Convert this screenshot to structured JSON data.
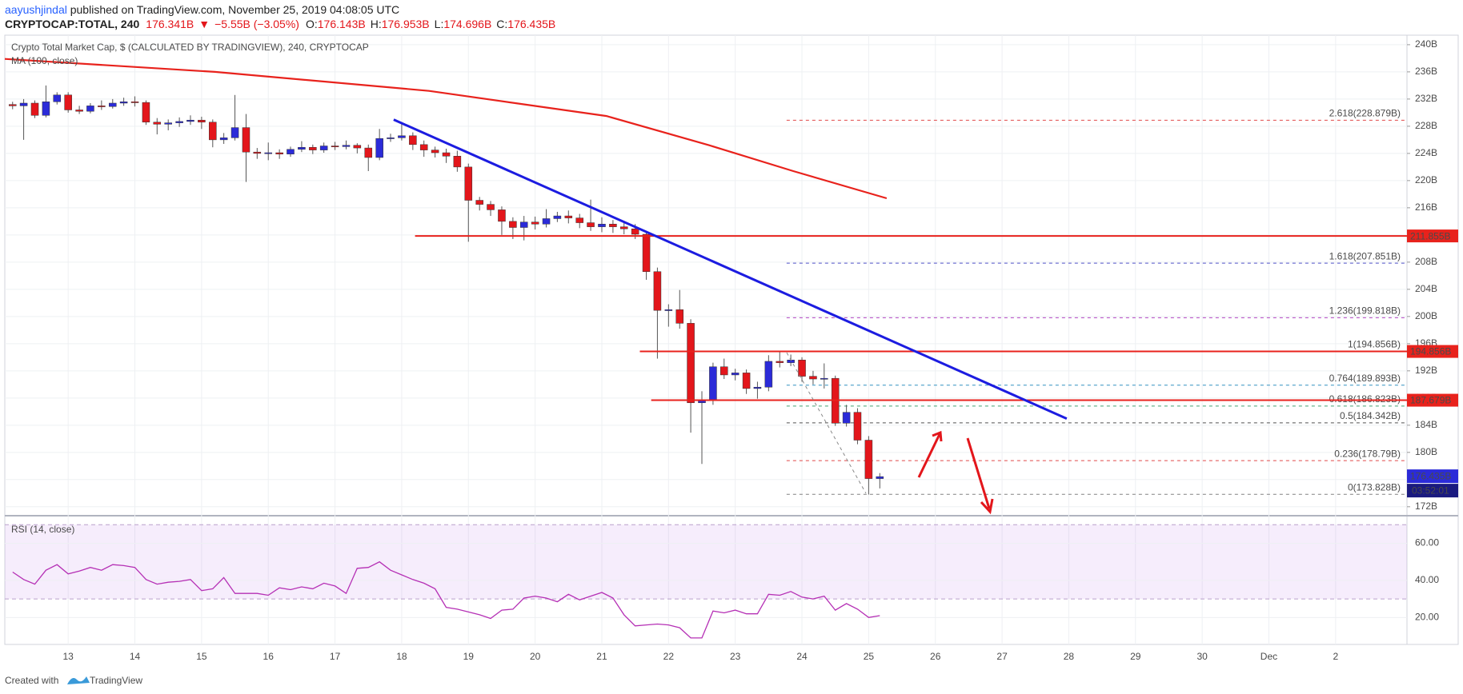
{
  "header": {
    "author": "aayushjindal",
    "published": " published on TradingView.com, November 25, 2019 04:08:05 UTC",
    "symbol": "CRYPTOCAP:TOTAL, 240",
    "price": "176.341B",
    "arrow": "▼",
    "change": "−5.55B (−3.05%)",
    "ohlc": [
      {
        "key": "O:",
        "value": "176.143B"
      },
      {
        "key": "H:",
        "value": "176.953B"
      },
      {
        "key": "L:",
        "value": "174.696B"
      },
      {
        "key": "C:",
        "value": "176.435B"
      }
    ]
  },
  "footer": {
    "created": "Created with",
    "brand": "TradingView"
  },
  "chart_data": {
    "type": "candlestick",
    "title": "Crypto Total Market Cap, $ (CALCULATED BY TRADINGVIEW), 240, CRYPTOCAP",
    "up_color": "#2b2bd8",
    "down_color": "#e3161b",
    "x": [
      12.167,
      12.333,
      12.5,
      12.667,
      12.833,
      13,
      13.167,
      13.333,
      13.5,
      13.667,
      13.833,
      14,
      14.167,
      14.333,
      14.5,
      14.667,
      14.833,
      15,
      15.167,
      15.333,
      15.5,
      15.667,
      15.833,
      16,
      16.167,
      16.333,
      16.5,
      16.667,
      16.833,
      17,
      17.167,
      17.333,
      17.5,
      17.667,
      17.833,
      18,
      18.167,
      18.333,
      18.5,
      18.667,
      18.833,
      19,
      19.167,
      19.333,
      19.5,
      19.667,
      19.833,
      20,
      20.167,
      20.333,
      20.5,
      20.667,
      20.833,
      21,
      21.167,
      21.333,
      21.5,
      21.667,
      21.833,
      22,
      22.167,
      22.333,
      22.5,
      22.667,
      22.833,
      23,
      23.167,
      23.333,
      23.5,
      23.667,
      23.833,
      24,
      24.167,
      24.333,
      24.5,
      24.667,
      24.833,
      25,
      25.167
    ],
    "open": [
      231.2,
      231.0,
      231.4,
      229.6,
      231.6,
      232.6,
      230.4,
      230.2,
      231.0,
      230.9,
      231.4,
      231.6,
      231.5,
      228.6,
      228.3,
      228.5,
      228.7,
      228.9,
      228.6,
      226.0,
      226.3,
      227.8,
      224.2,
      224.0,
      224.1,
      223.9,
      224.6,
      224.9,
      224.5,
      225.1,
      225.0,
      225.2,
      224.8,
      223.4,
      226.2,
      226.3,
      226.6,
      225.3,
      224.5,
      224.1,
      223.6,
      222.0,
      217.1,
      216.5,
      215.7,
      214.0,
      213.1,
      213.9,
      213.6,
      214.4,
      214.8,
      214.5,
      213.8,
      213.2,
      213.6,
      213.2,
      212.9,
      212.1,
      206.6,
      200.9,
      201.0,
      199.0,
      187.3,
      187.6,
      192.6,
      191.4,
      191.7,
      189.4,
      189.6,
      193.4,
      193.2,
      193.6,
      191.2,
      190.8,
      190.9,
      184.3,
      185.9,
      181.8,
      176.143
    ],
    "high": [
      231.6,
      232.0,
      231.8,
      234.0,
      233.0,
      233.0,
      231.0,
      231.4,
      231.8,
      232.0,
      232.2,
      232.4,
      231.8,
      229.2,
      229.0,
      229.3,
      229.6,
      229.4,
      229.0,
      227.0,
      232.6,
      229.8,
      224.8,
      225.6,
      224.6,
      225.0,
      225.8,
      225.3,
      225.6,
      225.7,
      225.9,
      225.5,
      225.3,
      227.6,
      226.9,
      228.6,
      227.1,
      225.9,
      225.0,
      224.7,
      224.4,
      222.5,
      217.6,
      217.0,
      216.2,
      214.6,
      214.8,
      214.7,
      215.8,
      215.4,
      215.6,
      215.1,
      217.2,
      214.6,
      214.2,
      214.0,
      213.6,
      212.6,
      207.2,
      201.8,
      203.9,
      199.6,
      189.0,
      193.2,
      193.8,
      192.3,
      192.2,
      190.4,
      194.3,
      194.8,
      194.4,
      194.0,
      192.0,
      193.1,
      191.3,
      187.0,
      186.5,
      182.4,
      176.953
    ],
    "low": [
      230.5,
      226.0,
      229.2,
      229.3,
      231.2,
      230.0,
      229.8,
      229.9,
      230.4,
      230.6,
      231.0,
      230.9,
      228.2,
      226.8,
      227.4,
      227.9,
      228.2,
      227.6,
      224.9,
      225.4,
      225.9,
      219.8,
      223.2,
      223.0,
      223.2,
      223.5,
      224.2,
      223.9,
      224.1,
      224.5,
      224.6,
      224.0,
      221.4,
      223.0,
      225.7,
      225.9,
      224.5,
      223.5,
      223.4,
      222.6,
      221.3,
      211.0,
      215.6,
      214.8,
      212.0,
      211.4,
      211.2,
      212.8,
      213.1,
      213.9,
      213.7,
      213.0,
      212.6,
      212.4,
      212.3,
      212.1,
      211.4,
      205.4,
      193.8,
      198.5,
      198.2,
      182.9,
      178.3,
      187.0,
      190.8,
      190.6,
      188.6,
      187.9,
      189.0,
      192.5,
      192.7,
      190.4,
      190.0,
      189.4,
      183.9,
      183.8,
      181.2,
      173.8,
      174.696
    ],
    "close": [
      231.0,
      231.4,
      229.6,
      231.6,
      232.6,
      230.4,
      230.2,
      231.0,
      230.9,
      231.4,
      231.6,
      231.5,
      228.6,
      228.3,
      228.5,
      228.7,
      228.9,
      228.6,
      226.0,
      226.3,
      227.8,
      224.2,
      224.0,
      224.1,
      223.9,
      224.6,
      224.9,
      224.5,
      225.1,
      225.0,
      225.2,
      224.8,
      223.4,
      226.2,
      226.3,
      226.6,
      225.3,
      224.5,
      224.1,
      223.6,
      222.0,
      217.1,
      216.5,
      215.7,
      214.0,
      213.1,
      213.9,
      213.6,
      214.4,
      214.8,
      214.5,
      213.8,
      213.2,
      213.6,
      213.2,
      212.9,
      212.1,
      206.6,
      200.9,
      201.0,
      199.0,
      187.3,
      187.6,
      192.6,
      191.4,
      191.7,
      189.4,
      189.6,
      193.4,
      193.2,
      193.6,
      191.2,
      190.8,
      190.9,
      184.3,
      185.9,
      181.8,
      176.143,
      176.435
    ],
    "xlim": [
      12.05,
      33.07
    ],
    "xticks": [
      13,
      14,
      15,
      16,
      17,
      18,
      19,
      20,
      21,
      22,
      23,
      24,
      25,
      26,
      27,
      28,
      29,
      30,
      {
        "value": 31,
        "label": "Dec"
      },
      {
        "value": 32,
        "label": "2"
      }
    ],
    "ylim": [
      170.8,
      241.4
    ],
    "yticks": [
      {
        "value": 172,
        "label": "172B"
      },
      {
        "value": 176,
        "label": "176B"
      },
      {
        "value": 180,
        "label": "180B"
      },
      {
        "value": 184,
        "label": "184B"
      },
      {
        "value": 188,
        "label": "188B"
      },
      {
        "value": 192,
        "label": "192B"
      },
      {
        "value": 196,
        "label": "196B"
      },
      {
        "value": 200,
        "label": "200B"
      },
      {
        "value": 204,
        "label": "204B"
      },
      {
        "value": 208,
        "label": "208B"
      },
      {
        "value": 212,
        "label": "212B"
      },
      {
        "value": 216,
        "label": "216B"
      },
      {
        "value": 220,
        "label": "220B"
      },
      {
        "value": 224,
        "label": "224B"
      },
      {
        "value": 228,
        "label": "228B"
      },
      {
        "value": 232,
        "label": "232B"
      },
      {
        "value": 236,
        "label": "236B"
      },
      {
        "value": 240,
        "label": "240B"
      }
    ],
    "grid": true,
    "levels": [
      {
        "value": 211.855,
        "label": "211.855B",
        "from": 18.2
      },
      {
        "value": 194.856,
        "label": "194.856B",
        "from": 21.57
      },
      {
        "value": 187.679,
        "label": "187.679B",
        "from": 21.74
      }
    ],
    "level_color": "#e8221c",
    "last_price": {
      "value": 176.435,
      "label": "176.435B",
      "countdown": "03:52:01",
      "color": "#2b2bd8"
    },
    "trendline": {
      "x": [
        17.88,
        27.97
      ],
      "values": [
        228.97,
        184.97
      ],
      "color": "#1c1ce0"
    },
    "ma": {
      "name": "MA (100, close)",
      "color": "#e8221c",
      "x": [
        12.05,
        15.2,
        18.41,
        21.07,
        22.61,
        23.87,
        25.27
      ],
      "values": [
        237.9,
        236.0,
        233.2,
        229.5,
        225.2,
        221.4,
        217.4
      ]
    },
    "fib": {
      "from": 23.77,
      "levels": [
        {
          "label": "2.618(228.879B)",
          "value": 228.879,
          "color": "#e04848"
        },
        {
          "label": "1.618(207.851B)",
          "value": 207.851,
          "color": "#5050c8"
        },
        {
          "label": "1.236(199.818B)",
          "value": 199.818,
          "color": "#b040c0"
        },
        {
          "label": "1(194.856B)",
          "value": 194.856,
          "color": "#4aa0e0"
        },
        {
          "label": "0.764(189.893B)",
          "value": 189.893,
          "color": "#3090c0"
        },
        {
          "label": "0.618(186.823B)",
          "value": 186.823,
          "color": "#40a070"
        },
        {
          "label": "0.5(184.342B)",
          "value": 184.342,
          "color": "#505050"
        },
        {
          "label": "0.236(178.79B)",
          "value": 178.79,
          "color": "#e04848"
        },
        {
          "label": "0(173.828B)",
          "value": 173.828,
          "color": "#808080"
        }
      ]
    },
    "rsi": {
      "name": "RSI (14, close)",
      "color": "#b530b5",
      "ylim": [
        5.5,
        74
      ],
      "yticks": [
        {
          "value": 20,
          "label": "20.00"
        },
        {
          "value": 40,
          "label": "40.00"
        },
        {
          "value": 60,
          "label": "60.00"
        }
      ],
      "band": [
        30,
        70
      ],
      "values": [
        44.5,
        40.5,
        38,
        45.5,
        48.5,
        43.5,
        45,
        47,
        45.5,
        48.5,
        48,
        47,
        40.5,
        38,
        39,
        39.5,
        40.5,
        34.5,
        35.5,
        41.5,
        33,
        33,
        33,
        32,
        36,
        35,
        36.5,
        35.5,
        38.5,
        37,
        33,
        46.5,
        47,
        50,
        45.5,
        43,
        40.5,
        38.5,
        35.5,
        25.5,
        24.5,
        23,
        21.5,
        19.5,
        24,
        24.5,
        30.5,
        31.5,
        30.5,
        28.5,
        32.5,
        29.5,
        31.5,
        33.5,
        30.5,
        21.5,
        15.5,
        16,
        16.5,
        16,
        14.5,
        9,
        9,
        23.5,
        22.5,
        24,
        22,
        22,
        32.5,
        32,
        34,
        31,
        30,
        31.5,
        24,
        27.5,
        24.5,
        20,
        21
      ]
    }
  }
}
